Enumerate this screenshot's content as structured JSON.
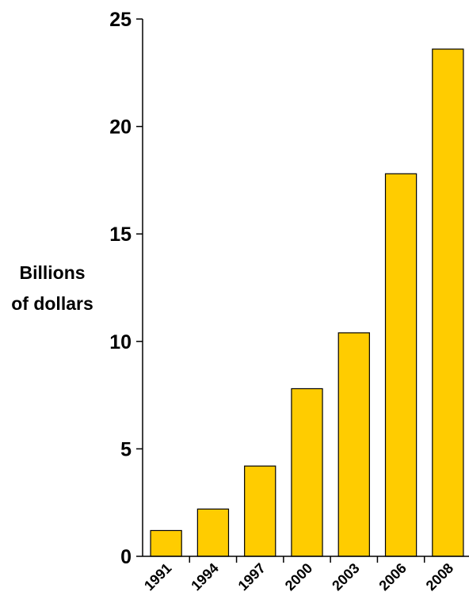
{
  "chart_data": {
    "type": "bar",
    "title": "",
    "xlabel": "",
    "ylabel": "Billions of dollars",
    "ylabel_lines": [
      "Billions",
      "of dollars"
    ],
    "categories": [
      "1991",
      "1994",
      "1997",
      "2000",
      "2003",
      "2006",
      "2008"
    ],
    "values": [
      1.2,
      2.2,
      4.2,
      7.8,
      10.4,
      17.8,
      23.6
    ],
    "yticks": [
      "0",
      "5",
      "10",
      "15",
      "20",
      "25"
    ],
    "ylim": [
      0,
      25
    ],
    "grid": false,
    "legend": "none",
    "bar_color": "#FFCC00",
    "bar_edge_color": "#000000"
  }
}
